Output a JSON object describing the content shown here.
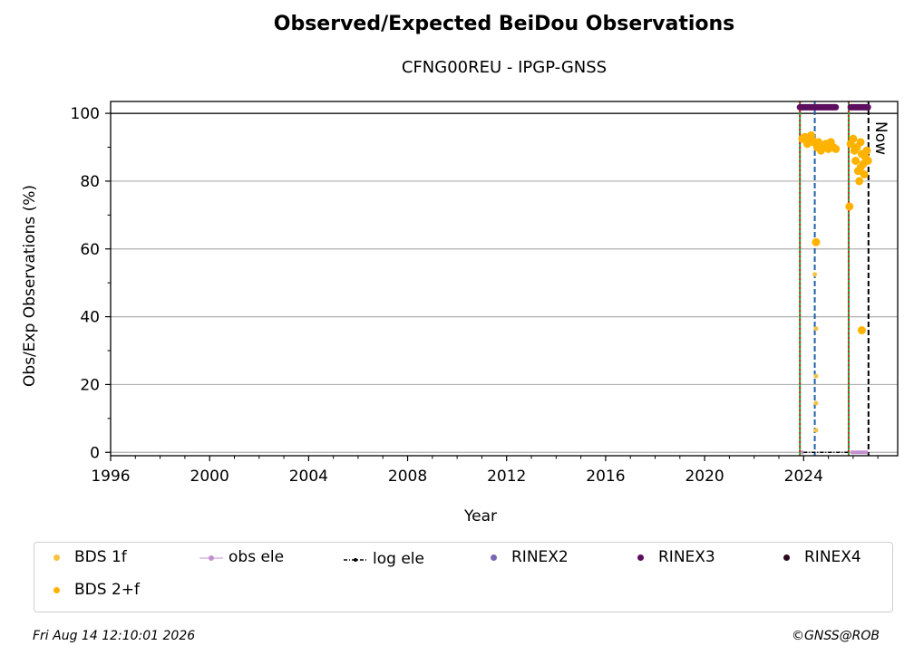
{
  "chart_data": {
    "type": "scatter",
    "title": "Observed/Expected BeiDou Observations",
    "subtitle": "CFNG00REU - IPGP-GNSS",
    "xlabel": "Year",
    "ylabel": "Obs/Exp Observations (%)",
    "xlim": [
      1996,
      2027.8
    ],
    "ylim": [
      -1,
      103.5
    ],
    "x_ticks": [
      "1996",
      "2000",
      "2004",
      "2008",
      "2012",
      "2016",
      "2020",
      "2024"
    ],
    "y_ticks": [
      "0",
      "20",
      "40",
      "60",
      "80",
      "100"
    ],
    "grid": "horizontal",
    "legend_position": "bottom",
    "now_label": "Now",
    "series": [
      {
        "name": "BDS 1f",
        "color": "#f5c242",
        "points": [
          [
            2024.5,
            62
          ],
          [
            2024.45,
            52.5
          ],
          [
            2024.5,
            36.5
          ],
          [
            2024.5,
            22.5
          ],
          [
            2024.5,
            14.5
          ],
          [
            2024.5,
            6.5
          ],
          [
            2025.85,
            72
          ]
        ]
      },
      {
        "name": "BDS 2+f",
        "color": "#ffb300",
        "points": [
          [
            2023.95,
            92.5
          ],
          [
            2024.05,
            93
          ],
          [
            2024.15,
            91
          ],
          [
            2024.25,
            92.5
          ],
          [
            2024.3,
            93.5
          ],
          [
            2024.35,
            92
          ],
          [
            2024.4,
            91.5
          ],
          [
            2024.5,
            62
          ],
          [
            2024.55,
            90
          ],
          [
            2024.6,
            91.5
          ],
          [
            2024.7,
            89
          ],
          [
            2024.8,
            90.5
          ],
          [
            2024.9,
            91
          ],
          [
            2025.0,
            89.5
          ],
          [
            2025.1,
            91.5
          ],
          [
            2025.2,
            90
          ],
          [
            2025.3,
            89.5
          ],
          [
            2025.85,
            72.5
          ],
          [
            2025.9,
            91
          ],
          [
            2026.0,
            92.5
          ],
          [
            2026.05,
            89
          ],
          [
            2026.1,
            86
          ],
          [
            2026.15,
            90
          ],
          [
            2026.2,
            83
          ],
          [
            2026.25,
            80
          ],
          [
            2026.3,
            84
          ],
          [
            2026.35,
            88
          ],
          [
            2026.4,
            85
          ],
          [
            2026.45,
            82
          ],
          [
            2026.5,
            87
          ],
          [
            2026.55,
            89
          ],
          [
            2026.6,
            86
          ],
          [
            2026.3,
            91.5
          ],
          [
            2026.35,
            36
          ]
        ]
      },
      {
        "name": "obs ele",
        "color": "#c38fd1",
        "segments": [
          [
            2023.9,
            2024.0
          ],
          [
            2025.9,
            2026.6
          ]
        ],
        "value": 0
      },
      {
        "name": "log ele",
        "color": "#000000",
        "segments": [
          [
            2024.0,
            2025.85
          ]
        ],
        "value": 0
      },
      {
        "name": "RINEX2",
        "color": "#7b68b5",
        "segments": []
      },
      {
        "name": "RINEX3",
        "color": "#5c0d5e",
        "segments": [
          [
            2023.85,
            2025.3
          ],
          [
            2025.9,
            2026.6
          ]
        ],
        "value": 101.8
      },
      {
        "name": "RINEX4",
        "color": "#2b0a1e",
        "segments": []
      }
    ],
    "vertical_lines": [
      {
        "x": 2023.85,
        "color": "#2ca02c",
        "style": "solid"
      },
      {
        "x": 2023.85,
        "color": "#d62728",
        "style": "dotted"
      },
      {
        "x": 2024.45,
        "color": "#1f5fa8",
        "style": "dashed"
      },
      {
        "x": 2025.82,
        "color": "#2ca02c",
        "style": "solid"
      },
      {
        "x": 2025.82,
        "color": "#d62728",
        "style": "dotted"
      },
      {
        "x": 2026.62,
        "color": "#000000",
        "style": "dashed"
      }
    ],
    "reference_line": 100
  },
  "legend": {
    "items": [
      {
        "label": "BDS 1f",
        "color": "#f5c242",
        "kind": "dot"
      },
      {
        "label": "obs ele",
        "color": "#c38fd1",
        "kind": "line-dot"
      },
      {
        "label": "log ele",
        "color": "#000000",
        "kind": "dashdot"
      },
      {
        "label": "RINEX2",
        "color": "#7b68b5",
        "kind": "dot"
      },
      {
        "label": "RINEX3",
        "color": "#5c0d5e",
        "kind": "dot"
      },
      {
        "label": "RINEX4",
        "color": "#2b0a1e",
        "kind": "dot"
      },
      {
        "label": "BDS 2+f",
        "color": "#ffb300",
        "kind": "dot"
      }
    ]
  },
  "footer": {
    "timestamp": "Fri Aug 14 12:10:01 2026",
    "credit": "©GNSS@ROB"
  }
}
